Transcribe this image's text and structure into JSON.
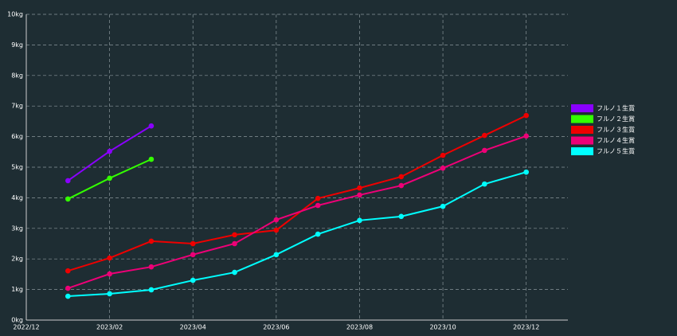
{
  "chart_data": {
    "type": "line",
    "x": [
      "2023/01",
      "2023/02",
      "2023/03",
      "2023/04",
      "2023/05",
      "2023/06",
      "2023/07",
      "2023/08",
      "2023/09",
      "2023/10",
      "2023/11",
      "2023/12"
    ],
    "xlim": [
      "2022/12",
      "2024/01"
    ],
    "xticks": [
      "2022/12",
      "2023/02",
      "2023/04",
      "2023/06",
      "2023/08",
      "2023/10",
      "2023/12"
    ],
    "ylim": [
      0,
      10
    ],
    "yticks": [
      {
        "value": 0,
        "label": "0kg"
      },
      {
        "value": 1,
        "label": "1kg"
      },
      {
        "value": 2,
        "label": "2kg"
      },
      {
        "value": 3,
        "label": "3kg"
      },
      {
        "value": 4,
        "label": "4kg"
      },
      {
        "value": 5,
        "label": "5kg"
      },
      {
        "value": 6,
        "label": "6kg"
      },
      {
        "value": 7,
        "label": "7kg"
      },
      {
        "value": 8,
        "label": "8kg"
      },
      {
        "value": 9,
        "label": "9kg"
      },
      {
        "value": 10,
        "label": "10kg"
      }
    ],
    "grid": true,
    "legend": "right",
    "series": [
      {
        "name": "フルノ１生賞",
        "color": "#8a00ff",
        "values": [
          4.56,
          5.52,
          6.35,
          null,
          null,
          null,
          null,
          null,
          null,
          null,
          null,
          null
        ]
      },
      {
        "name": "フルノ２生賞",
        "color": "#33ff00",
        "values": [
          3.96,
          4.64,
          5.26,
          null,
          null,
          null,
          null,
          null,
          null,
          null,
          null,
          null
        ]
      },
      {
        "name": "フルノ３生賞",
        "color": "#ee0000",
        "values": [
          1.61,
          2.03,
          2.58,
          2.5,
          2.79,
          2.94,
          3.98,
          4.32,
          4.69,
          5.39,
          6.04,
          6.69
        ]
      },
      {
        "name": "フルノ４生賞",
        "color": "#ee0077",
        "values": [
          1.04,
          1.51,
          1.74,
          2.14,
          2.5,
          3.28,
          3.75,
          4.09,
          4.4,
          4.97,
          5.55,
          6.02
        ]
      },
      {
        "name": "フルノ５生賞",
        "color": "#00ffff",
        "values": [
          0.78,
          0.86,
          0.99,
          1.3,
          1.56,
          2.14,
          2.81,
          3.26,
          3.39,
          3.72,
          4.45,
          4.84
        ]
      }
    ]
  }
}
